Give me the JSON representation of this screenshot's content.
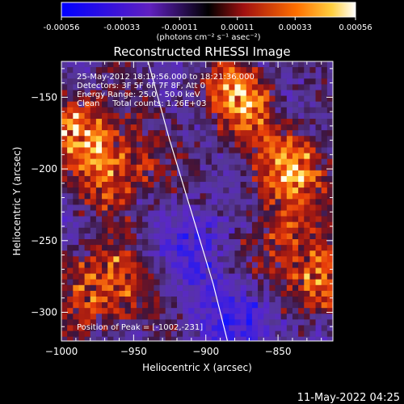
{
  "colorbar": {
    "ticks": [
      "-0.00056",
      "-0.00033",
      "-0.00011",
      "0.00011",
      "0.00033",
      "0.00056"
    ],
    "tick_values": [
      -0.00056,
      -0.00033,
      -0.00011,
      0.00011,
      0.00033,
      0.00056
    ],
    "range": [
      -0.00056,
      0.00056
    ],
    "units_label": "(photons cm⁻² s⁻¹ asec⁻²)",
    "colors": [
      "#1a1aff",
      "#5030c0",
      "#202020",
      "#a01818",
      "#ff6a00",
      "#ffffff"
    ]
  },
  "chart_data": {
    "type": "heatmap",
    "title": "Reconstructed RHESSI Image",
    "xlabel": "Heliocentric X (arcsec)",
    "ylabel": "Heliocentric Y (arcsec)",
    "xlim": [
      -1000,
      -812
    ],
    "ylim": [
      -320,
      -125
    ],
    "x_ticks": [
      -1000,
      -950,
      -900,
      -850
    ],
    "y_ticks": [
      -150,
      -200,
      -250,
      -300
    ],
    "x_tick_labels": [
      "−1000",
      "−950",
      "−900",
      "−850"
    ],
    "y_tick_labels": [
      "−150",
      "−200",
      "−250",
      "−300"
    ],
    "grid": false,
    "limb_curve": [
      [
        -940,
        -125
      ],
      [
        -925,
        -180
      ],
      [
        -910,
        -230
      ],
      [
        -895,
        -280
      ],
      [
        -885,
        -320
      ]
    ],
    "bright_regions": [
      {
        "x": -990,
        "y": -170,
        "level": 0.85
      },
      {
        "x": -975,
        "y": -280,
        "level": 0.9
      },
      {
        "x": -960,
        "y": -200,
        "level": 0.7
      },
      {
        "x": -880,
        "y": -150,
        "level": 0.85
      },
      {
        "x": -840,
        "y": -200,
        "level": 0.9
      },
      {
        "x": -830,
        "y": -280,
        "level": 0.8
      },
      {
        "x": -860,
        "y": -250,
        "level": 0.55
      }
    ],
    "dark_regions": [
      {
        "x": -900,
        "y": -250,
        "level": -0.5
      },
      {
        "x": -870,
        "y": -300,
        "level": -0.6
      }
    ]
  },
  "annotations": {
    "time_range": "25-May-2012 18:19:56.000 to 18:21:36.000",
    "detectors": "Detectors: 3F 5F 6F 7F 8F, Att 0",
    "energy": "Energy Range: 25.0 - 50.0 keV",
    "clean": "Clean     Total counts: 1.26E+03",
    "peak": "Position of Peak = [-1002,-231]"
  },
  "timestamp": "11-May-2022 04:25"
}
